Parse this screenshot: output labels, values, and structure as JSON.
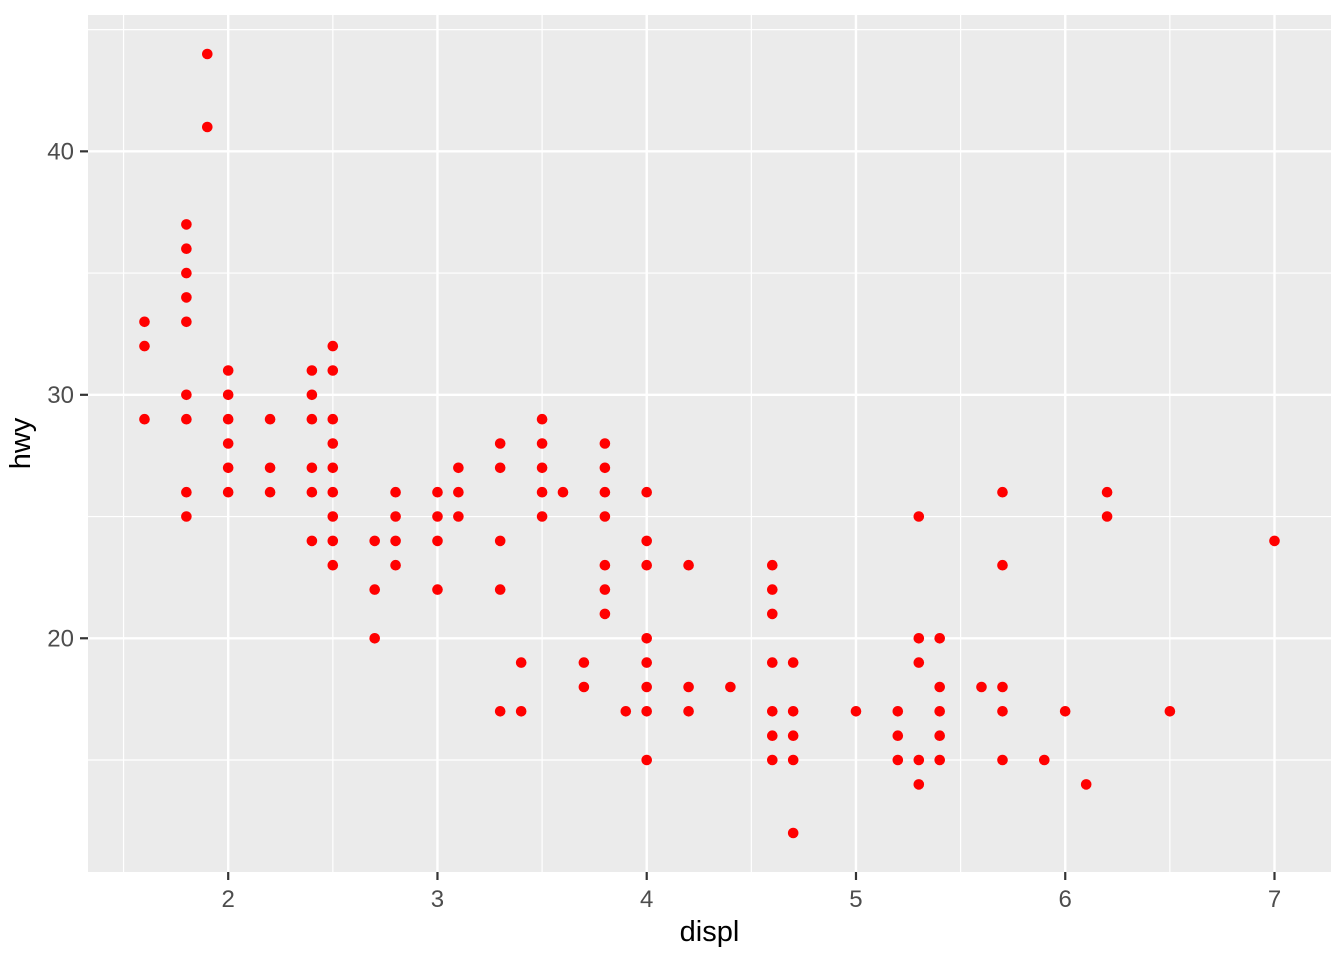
{
  "chart_data": {
    "type": "scatter",
    "title": "",
    "xlabel": "displ",
    "ylabel": "hwy",
    "xlim": [
      1.33,
      7.27
    ],
    "ylim": [
      10.4,
      45.6
    ],
    "x_ticks": [
      2,
      3,
      4,
      5,
      6,
      7
    ],
    "y_ticks": [
      20,
      30,
      40
    ],
    "x_minor_ticks": [
      1.5,
      2.5,
      3.5,
      4.5,
      5.5,
      6.5
    ],
    "y_minor_ticks": [
      15,
      25,
      35,
      45
    ],
    "grid": "on",
    "legend_position": "none",
    "panel_background": "#EBEBEB",
    "grid_color": "#FFFFFF",
    "point_color": "#FF0000",
    "tick_mark_color": "#333333",
    "tick_label_color": "#4D4D4D",
    "axis_title_color": "#000000",
    "points": [
      [
        1.6,
        33
      ],
      [
        1.6,
        32
      ],
      [
        1.6,
        29
      ],
      [
        1.8,
        37
      ],
      [
        1.8,
        36
      ],
      [
        1.8,
        35
      ],
      [
        1.8,
        34
      ],
      [
        1.8,
        33
      ],
      [
        1.8,
        30
      ],
      [
        1.8,
        29
      ],
      [
        1.8,
        26
      ],
      [
        1.8,
        25
      ],
      [
        1.9,
        44
      ],
      [
        1.9,
        41
      ],
      [
        2.0,
        31
      ],
      [
        2.0,
        30
      ],
      [
        2.0,
        29
      ],
      [
        2.0,
        28
      ],
      [
        2.0,
        27
      ],
      [
        2.0,
        26
      ],
      [
        2.2,
        29
      ],
      [
        2.2,
        27
      ],
      [
        2.2,
        26
      ],
      [
        2.4,
        31
      ],
      [
        2.4,
        30
      ],
      [
        2.4,
        29
      ],
      [
        2.4,
        27
      ],
      [
        2.4,
        26
      ],
      [
        2.4,
        24
      ],
      [
        2.5,
        32
      ],
      [
        2.5,
        31
      ],
      [
        2.5,
        29
      ],
      [
        2.5,
        28
      ],
      [
        2.5,
        27
      ],
      [
        2.5,
        26
      ],
      [
        2.5,
        25
      ],
      [
        2.5,
        24
      ],
      [
        2.5,
        23
      ],
      [
        2.7,
        24
      ],
      [
        2.7,
        22
      ],
      [
        2.7,
        20
      ],
      [
        2.8,
        26
      ],
      [
        2.8,
        25
      ],
      [
        2.8,
        24
      ],
      [
        2.8,
        23
      ],
      [
        3.0,
        26
      ],
      [
        3.0,
        25
      ],
      [
        3.0,
        24
      ],
      [
        3.0,
        22
      ],
      [
        3.1,
        27
      ],
      [
        3.1,
        26
      ],
      [
        3.1,
        25
      ],
      [
        3.3,
        28
      ],
      [
        3.3,
        27
      ],
      [
        3.3,
        24
      ],
      [
        3.3,
        22
      ],
      [
        3.3,
        17
      ],
      [
        3.4,
        19
      ],
      [
        3.4,
        17
      ],
      [
        3.5,
        29
      ],
      [
        3.5,
        28
      ],
      [
        3.5,
        27
      ],
      [
        3.5,
        26
      ],
      [
        3.5,
        25
      ],
      [
        3.6,
        26
      ],
      [
        3.7,
        19
      ],
      [
        3.7,
        18
      ],
      [
        3.8,
        28
      ],
      [
        3.8,
        27
      ],
      [
        3.8,
        26
      ],
      [
        3.8,
        25
      ],
      [
        3.8,
        23
      ],
      [
        3.8,
        22
      ],
      [
        3.8,
        21
      ],
      [
        3.9,
        17
      ],
      [
        4.0,
        26
      ],
      [
        4.0,
        24
      ],
      [
        4.0,
        23
      ],
      [
        4.0,
        20
      ],
      [
        4.0,
        19
      ],
      [
        4.0,
        18
      ],
      [
        4.0,
        17
      ],
      [
        4.0,
        15
      ],
      [
        4.2,
        23
      ],
      [
        4.2,
        18
      ],
      [
        4.2,
        17
      ],
      [
        4.4,
        18
      ],
      [
        4.6,
        23
      ],
      [
        4.6,
        22
      ],
      [
        4.6,
        21
      ],
      [
        4.6,
        19
      ],
      [
        4.6,
        17
      ],
      [
        4.6,
        16
      ],
      [
        4.6,
        15
      ],
      [
        4.7,
        19
      ],
      [
        4.7,
        17
      ],
      [
        4.7,
        16
      ],
      [
        4.7,
        15
      ],
      [
        4.7,
        12
      ],
      [
        5.0,
        17
      ],
      [
        5.2,
        17
      ],
      [
        5.2,
        16
      ],
      [
        5.2,
        15
      ],
      [
        5.3,
        25
      ],
      [
        5.3,
        20
      ],
      [
        5.3,
        19
      ],
      [
        5.3,
        15
      ],
      [
        5.3,
        14
      ],
      [
        5.4,
        20
      ],
      [
        5.4,
        18
      ],
      [
        5.4,
        17
      ],
      [
        5.4,
        16
      ],
      [
        5.4,
        15
      ],
      [
        5.6,
        18
      ],
      [
        5.7,
        26
      ],
      [
        5.7,
        23
      ],
      [
        5.7,
        18
      ],
      [
        5.7,
        17
      ],
      [
        5.7,
        15
      ],
      [
        5.9,
        15
      ],
      [
        6.0,
        17
      ],
      [
        6.1,
        14
      ],
      [
        6.2,
        26
      ],
      [
        6.2,
        25
      ],
      [
        6.5,
        17
      ],
      [
        7.0,
        24
      ]
    ]
  }
}
